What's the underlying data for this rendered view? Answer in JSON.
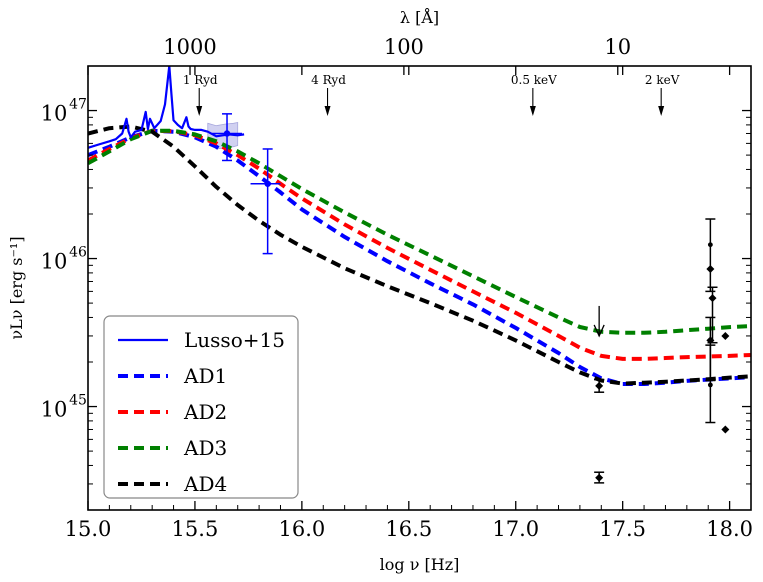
{
  "chart_data": {
    "type": "line",
    "title": "",
    "xlabel": "log ν [Hz]",
    "ylabel": "νLν [erg s⁻¹]",
    "top_xlabel": "λ [Å]",
    "x_scale": "linear",
    "y_scale": "log",
    "xlim": [
      15.0,
      18.1
    ],
    "ylim": [
      2e+44,
      2e+47
    ],
    "x_ticks": [
      15.0,
      15.5,
      16.0,
      16.5,
      17.0,
      17.5,
      18.0
    ],
    "x_tick_labels": [
      "15.0",
      "15.5",
      "16.0",
      "16.5",
      "17.0",
      "17.5",
      "18.0"
    ],
    "y_ticks": [
      1e+45,
      1e+46,
      1e+47
    ],
    "y_tick_labels": [
      "10",
      "10",
      "10"
    ],
    "y_tick_exponents": [
      "45",
      "46",
      "47"
    ],
    "top_ticks": [
      {
        "lambda": 1000,
        "logv": 15.477,
        "label": "1000"
      },
      {
        "lambda": 100,
        "logv": 16.477,
        "label": "100"
      },
      {
        "lambda": 10,
        "logv": 17.477,
        "label": "10"
      }
    ],
    "annotations": [
      {
        "text": "1 Ryd",
        "x": 15.52
      },
      {
        "text": "4 Ryd",
        "x": 16.12
      },
      {
        "text": "0.5 keV",
        "x": 17.08
      },
      {
        "text": "2 keV",
        "x": 17.68
      }
    ],
    "legend": {
      "position": "lower-left",
      "entries": [
        "Lusso+15",
        "AD1",
        "AD2",
        "AD3",
        "AD4"
      ]
    },
    "series": [
      {
        "name": "Lusso+15",
        "color": "#0000ff",
        "style": "solid",
        "x": [
          15.0,
          15.05,
          15.1,
          15.13,
          15.16,
          15.18,
          15.19,
          15.2,
          15.22,
          15.25,
          15.27,
          15.28,
          15.29,
          15.31,
          15.34,
          15.36,
          15.38,
          15.39,
          15.4,
          15.42,
          15.44,
          15.46,
          15.47,
          15.48,
          15.5,
          15.53,
          15.56,
          15.6,
          15.63,
          15.66,
          15.7,
          15.73
        ],
        "y": [
          5.6e+46,
          5.9e+46,
          6.2e+46,
          6.4e+46,
          7e+46,
          8.8e+46,
          7.2e+46,
          6.6e+46,
          7.2e+46,
          7.4e+46,
          9.8e+46,
          7.5e+46,
          8.8e+46,
          7.6e+46,
          8.5e+46,
          1.1e+47,
          2e+47,
          1.3e+47,
          8.6e+46,
          8e+46,
          7.6e+46,
          9e+46,
          7.8e+46,
          7.5e+46,
          7.4e+46,
          7.4e+46,
          7.2e+46,
          6.7e+46,
          6.8e+46,
          6.9e+46,
          6.8e+46,
          6.9e+46
        ]
      },
      {
        "name": "AD1",
        "color": "#0000ff",
        "style": "dashed",
        "x": [
          15.0,
          15.1,
          15.2,
          15.3,
          15.4,
          15.5,
          15.6,
          15.7,
          15.8,
          15.9,
          16.0,
          16.2,
          16.4,
          16.6,
          16.8,
          17.0,
          17.2,
          17.3,
          17.4,
          17.5,
          17.6,
          17.7,
          17.8,
          17.9,
          18.0,
          18.1
        ],
        "y": [
          5e+46,
          5.7e+46,
          6.6e+46,
          7.3e+46,
          7.2e+46,
          6.6e+46,
          5.7e+46,
          4.6e+46,
          3.6e+46,
          2.8e+46,
          2.15e+46,
          1.4e+46,
          9.6e+45,
          6.8e+45,
          4.9e+45,
          3.4e+45,
          2.3e+45,
          1.85e+45,
          1.55e+45,
          1.42e+45,
          1.42e+45,
          1.45e+45,
          1.49e+45,
          1.52e+45,
          1.55e+45,
          1.58e+45
        ]
      },
      {
        "name": "AD2",
        "color": "#ff0000",
        "style": "dashed",
        "x": [
          15.0,
          15.1,
          15.2,
          15.3,
          15.4,
          15.5,
          15.6,
          15.7,
          15.8,
          15.9,
          16.0,
          16.2,
          16.4,
          16.6,
          16.8,
          17.0,
          17.2,
          17.3,
          17.4,
          17.5,
          17.6,
          17.7,
          17.8,
          17.9,
          18.0,
          18.1
        ],
        "y": [
          4.6e+46,
          5.5e+46,
          6.5e+46,
          7.3e+46,
          7.25e+46,
          6.8e+46,
          6e+46,
          5e+46,
          4.05e+46,
          3.2e+46,
          2.55e+46,
          1.7e+46,
          1.18e+46,
          8.4e+45,
          6e+45,
          4.3e+45,
          3e+45,
          2.5e+45,
          2.2e+45,
          2.1e+45,
          2.1e+45,
          2.13e+45,
          2.16e+45,
          2.18e+45,
          2.2e+45,
          2.23e+45
        ]
      },
      {
        "name": "AD3",
        "color": "#008000",
        "style": "dashed",
        "x": [
          15.0,
          15.1,
          15.2,
          15.3,
          15.4,
          15.5,
          15.6,
          15.7,
          15.8,
          15.9,
          16.0,
          16.2,
          16.4,
          16.6,
          16.8,
          17.0,
          17.2,
          17.3,
          17.4,
          17.5,
          17.6,
          17.7,
          17.8,
          17.9,
          18.0,
          18.1
        ],
        "y": [
          4.4e+46,
          5.3e+46,
          6.4e+46,
          7.3e+46,
          7.3e+46,
          6.9e+46,
          6.2e+46,
          5.3e+46,
          4.4e+46,
          3.6e+46,
          2.95e+46,
          2.05e+46,
          1.45e+46,
          1.05e+46,
          7.6e+45,
          5.5e+45,
          4e+45,
          3.45e+45,
          3.2e+45,
          3.15e+45,
          3.15e+45,
          3.2e+45,
          3.28e+45,
          3.36e+45,
          3.44e+45,
          3.5e+45
        ]
      },
      {
        "name": "AD4",
        "color": "#000000",
        "style": "dashed",
        "x": [
          15.0,
          15.1,
          15.2,
          15.3,
          15.4,
          15.5,
          15.6,
          15.7,
          15.8,
          15.9,
          16.0,
          16.2,
          16.4,
          16.6,
          16.8,
          17.0,
          17.2,
          17.3,
          17.4,
          17.5,
          17.6,
          17.7,
          17.8,
          17.9,
          18.0,
          18.1
        ],
        "y": [
          7e+46,
          7.6e+46,
          7.8e+46,
          7.2e+46,
          5.7e+46,
          4.2e+46,
          3.05e+46,
          2.3e+46,
          1.8e+46,
          1.45e+46,
          1.2e+46,
          8.6e+45,
          6.5e+45,
          5e+45,
          3.8e+45,
          2.8e+45,
          2e+45,
          1.7e+45,
          1.5e+45,
          1.43e+45,
          1.45e+45,
          1.47e+45,
          1.5e+45,
          1.53e+45,
          1.57e+45,
          1.6e+45
        ]
      }
    ],
    "band": {
      "name": "Lusso+15 uncertainty",
      "color": "#c9c9ef",
      "x": [
        15.56,
        15.6,
        15.64,
        15.68,
        15.7
      ],
      "y_low": [
        6.2e+46,
        5.5e+46,
        5.6e+46,
        5.7e+46,
        5.8e+46
      ],
      "y_high": [
        8.2e+46,
        7.9e+46,
        8.1e+46,
        8.2e+46,
        8.3e+46
      ]
    },
    "blue_points": [
      {
        "x": 15.65,
        "y": 7e+46,
        "xerr": [
          15.58,
          15.72
        ],
        "yerr": [
          4.6e+46,
          9.5e+46
        ]
      },
      {
        "x": 15.84,
        "y": 3.2e+46,
        "xerr": [
          15.76,
          15.9
        ],
        "yerr": [
          1.08e+46,
          5.5e+46
        ]
      }
    ],
    "black_points": [
      {
        "x": 17.39,
        "y": 1.38e+45,
        "yerr": [
          1.25e+45,
          1.52e+45
        ],
        "marker": "diamond"
      },
      {
        "x": 17.39,
        "y": 3.3e+44,
        "yerr": [
          3.05e+44,
          3.6e+44
        ],
        "marker": "diamond"
      },
      {
        "x": 17.91,
        "y": 1.24e+46,
        "yerr": [
          6e+45,
          1.85e+46
        ],
        "marker": "dot"
      },
      {
        "x": 17.91,
        "y": 8.5e+45,
        "marker": "diamond"
      },
      {
        "x": 17.92,
        "y": 5.4e+45,
        "yerr": [
          2.7e+45,
          6.4e+45
        ],
        "marker": "diamond"
      },
      {
        "x": 17.91,
        "y": 2.8e+45,
        "yerr": [
          1.5e+45,
          4e+45
        ],
        "marker": "diamond"
      },
      {
        "x": 17.91,
        "y": 1.4e+45,
        "yerr": [
          7.8e+44,
          2.6e+45
        ],
        "marker": "dot"
      },
      {
        "x": 17.98,
        "y": 3e+45,
        "marker": "diamond"
      },
      {
        "x": 17.98,
        "y": 7e+44,
        "marker": "diamond"
      }
    ],
    "upper_limits": [
      {
        "x": 17.39,
        "y": 3e+45
      }
    ]
  }
}
